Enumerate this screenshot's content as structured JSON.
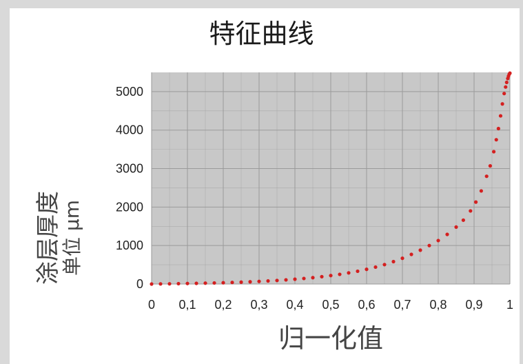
{
  "chart_data": {
    "type": "scatter",
    "title": "特征曲线",
    "xlabel": "归一化值",
    "ylabel_line1": "涂层厚度",
    "ylabel_line2": "单位 μm",
    "xlim": [
      0,
      1
    ],
    "ylim": [
      0,
      5500
    ],
    "x_ticks": [
      0,
      0.1,
      0.2,
      0.3,
      0.4,
      0.5,
      0.6,
      0.7,
      0.8,
      0.9,
      1
    ],
    "x_tick_labels": [
      "0",
      "0,1",
      "0,2",
      "0,3",
      "0,4",
      "0,5",
      "0,6",
      "0,7",
      "0,8",
      "0,9",
      "1"
    ],
    "y_ticks": [
      0,
      1000,
      2000,
      3000,
      4000,
      5000
    ],
    "y_tick_labels": [
      "0",
      "1000",
      "2000",
      "3000",
      "4000",
      "5000"
    ],
    "grid": true,
    "colors": {
      "plot_bg": "#c8c8c8",
      "grid": "#9a9a9a",
      "marker": "#d42020"
    },
    "series": [
      {
        "x": [
          0,
          0.025,
          0.05,
          0.075,
          0.1,
          0.125,
          0.15,
          0.175,
          0.2,
          0.225,
          0.25,
          0.275,
          0.3,
          0.325,
          0.35,
          0.375,
          0.4,
          0.425,
          0.45,
          0.475,
          0.5,
          0.525,
          0.55,
          0.575,
          0.6,
          0.625,
          0.65,
          0.675,
          0.7,
          0.725,
          0.75,
          0.775,
          0.8,
          0.825,
          0.85,
          0.87,
          0.89,
          0.905,
          0.92,
          0.935,
          0.945,
          0.955,
          0.962,
          0.968,
          0.974,
          0.979,
          0.984,
          0.988,
          0.991,
          0.994,
          0.996,
          0.998,
          1.0
        ],
        "y": [
          0,
          3,
          6,
          10,
          14,
          18,
          23,
          28,
          34,
          41,
          49,
          58,
          68,
          80,
          93,
          108,
          125,
          144,
          166,
          191,
          220,
          252,
          290,
          333,
          383,
          440,
          505,
          582,
          670,
          770,
          880,
          1000,
          1130,
          1290,
          1480,
          1660,
          1900,
          2130,
          2420,
          2800,
          3070,
          3440,
          3750,
          4040,
          4370,
          4680,
          4950,
          5120,
          5240,
          5340,
          5400,
          5450,
          5480
        ]
      }
    ]
  }
}
